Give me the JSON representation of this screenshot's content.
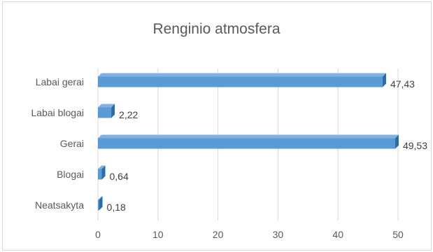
{
  "chart_data": {
    "type": "bar",
    "orientation": "horizontal",
    "title": "Renginio atmosfera",
    "categories": [
      "Labai gerai",
      "Labai blogai",
      "Gerai",
      "Blogai",
      "Neatsakyta"
    ],
    "values": [
      47.43,
      2.22,
      49.53,
      0.64,
      0.18
    ],
    "data_labels": [
      "47,43",
      "2,22",
      "49,53",
      "0,64",
      "0,18"
    ],
    "xlim": [
      0,
      50
    ],
    "xticks": [
      0,
      10,
      20,
      30,
      40,
      50
    ],
    "grid": true,
    "legend": "none",
    "bar_color": "#5b9bd5",
    "bar_side_color": "#2e6aa8"
  }
}
